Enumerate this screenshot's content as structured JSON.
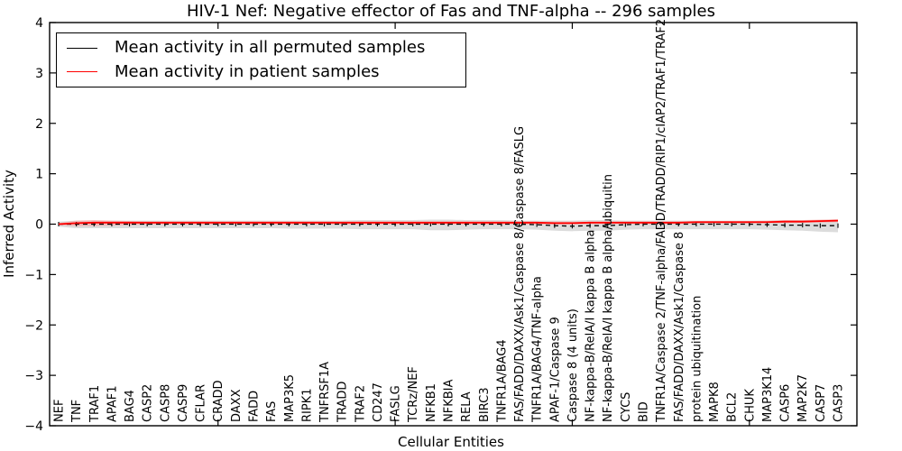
{
  "title": "HIV-1 Nef: Negative effector of Fas and TNF-alpha -- 296 samples",
  "colors": {
    "permuted_line": "#000000",
    "patient_line": "#ff0000",
    "permuted_band": "#d6d6d6",
    "patient_band": "#f6a8a8",
    "axis": "#000000"
  },
  "chart_data": {
    "type": "line",
    "title": "HIV-1 Nef: Negative effector of Fas and TNF-alpha -- 296 samples",
    "xlabel": "Cellular Entities",
    "ylabel": "Inferred Activity",
    "ylim": [
      -4,
      4
    ],
    "yticks": [
      -4,
      -3,
      -2,
      -1,
      0,
      1,
      2,
      3,
      4
    ],
    "grid": false,
    "legend_position": "upper left",
    "x_major_tick_indices": [
      9,
      19,
      29,
      39
    ],
    "categories": [
      "NEF",
      "TNF",
      "TRAF1",
      "APAF1",
      "BAG4",
      "CASP2",
      "CASP8",
      "CASP9",
      "CFLAR",
      "CRADD",
      "DAXX",
      "FADD",
      "FAS",
      "MAP3K5",
      "RIPK1",
      "TNFRSF1A",
      "TRADD",
      "TRAF2",
      "CD247",
      "FASLG",
      "TCRz/NEF",
      "NFKB1",
      "NFKBIA",
      "RELA",
      "BIRC3",
      "TNFR1A/BAG4",
      "FAS/FADD/DAXX/Ask1/Caspase 8/Caspase 8/FASLG",
      "TNFR1A/BAG4/TNF-alpha",
      "APAF-1/Caspase 9",
      "Caspase 8 (4 units)",
      "NF-kappa-B/RelA/I kappa B alpha",
      "NF-kappa-B/RelA/I kappa B alpha/ubiquitin",
      "CYCS",
      "BID",
      "TNFR1A/Caspase 2/TNF-alpha/FADD/TRADD/RIP1/cIAP2/TRAF1/TRAF2",
      "FAS/FADD/DAXX/Ask1/Caspase 8",
      "protein ubiquitination",
      "MAPK8",
      "BCL2",
      "CHUK",
      "MAP3K14",
      "CASP6",
      "MAP2K7",
      "CASP7",
      "CASP3"
    ],
    "series": [
      {
        "name": "Mean activity in all permuted samples",
        "color": "#000000",
        "style": "dashed-with-tick-markers",
        "values": [
          0,
          0,
          0,
          0,
          0,
          0,
          0,
          0,
          0,
          0,
          0,
          0,
          0,
          0,
          0,
          0,
          0,
          0,
          0,
          0,
          0,
          0,
          0,
          0,
          0,
          0,
          0,
          -0.01,
          -0.03,
          -0.04,
          -0.03,
          -0.03,
          -0.01,
          0,
          0,
          0,
          0,
          0,
          0,
          0,
          -0.01,
          -0.02,
          -0.02,
          -0.03,
          -0.03
        ]
      },
      {
        "name": "Mean activity in patient samples",
        "color": "#ff0000",
        "style": "solid",
        "values": [
          0,
          0.02,
          0.03,
          0.03,
          0.03,
          0.03,
          0.03,
          0.03,
          0.03,
          0.03,
          0.03,
          0.03,
          0.03,
          0.03,
          0.03,
          0.03,
          0.03,
          0.03,
          0.03,
          0.03,
          0.03,
          0.03,
          0.03,
          0.03,
          0.03,
          0.03,
          0.03,
          0.03,
          0.02,
          0.02,
          0.03,
          0.03,
          0.03,
          0.03,
          0.03,
          0.03,
          0.04,
          0.04,
          0.04,
          0.04,
          0.04,
          0.05,
          0.05,
          0.06,
          0.07
        ]
      }
    ],
    "bands": [
      {
        "name": "permuted-samples-range",
        "color": "#d6d6d6",
        "opacity": 0.85,
        "upper": [
          0.05,
          0.07,
          0.07,
          0.07,
          0.07,
          0.07,
          0.07,
          0.07,
          0.07,
          0.07,
          0.07,
          0.07,
          0.07,
          0.07,
          0.07,
          0.07,
          0.07,
          0.08,
          0.08,
          0.08,
          0.08,
          0.09,
          0.09,
          0.08,
          0.08,
          0.08,
          0.07,
          0.07,
          0.07,
          0.07,
          0.08,
          0.08,
          0.07,
          0.07,
          0.07,
          0.07,
          0.07,
          0.07,
          0.07,
          0.07,
          0.07,
          0.08,
          0.08,
          0.08,
          0.08
        ],
        "lower": [
          -0.05,
          -0.08,
          -0.08,
          -0.08,
          -0.08,
          -0.08,
          -0.08,
          -0.08,
          -0.08,
          -0.08,
          -0.08,
          -0.08,
          -0.08,
          -0.09,
          -0.09,
          -0.09,
          -0.09,
          -0.1,
          -0.1,
          -0.1,
          -0.1,
          -0.12,
          -0.12,
          -0.11,
          -0.1,
          -0.1,
          -0.1,
          -0.11,
          -0.13,
          -0.14,
          -0.13,
          -0.13,
          -0.11,
          -0.1,
          -0.1,
          -0.1,
          -0.1,
          -0.1,
          -0.1,
          -0.1,
          -0.11,
          -0.12,
          -0.13,
          -0.15,
          -0.16
        ]
      },
      {
        "name": "patient-samples-range",
        "color": "#f6a8a8",
        "opacity": 0.65,
        "upper": [
          0.02,
          0.07,
          0.08,
          0.07,
          0.06,
          0.05,
          0.05,
          0.05,
          0.05,
          0.05,
          0.05,
          0.05,
          0.05,
          0.05,
          0.05,
          0.05,
          0.05,
          0.05,
          0.05,
          0.05,
          0.05,
          0.05,
          0.05,
          0.05,
          0.05,
          0.05,
          0.05,
          0.05,
          0.05,
          0.05,
          0.05,
          0.05,
          0.05,
          0.05,
          0.05,
          0.05,
          0.06,
          0.06,
          0.06,
          0.06,
          0.07,
          0.08,
          0.08,
          0.09,
          0.1
        ],
        "lower": [
          -0.02,
          -0.04,
          -0.04,
          -0.03,
          -0.02,
          -0.01,
          -0.01,
          -0.01,
          -0.01,
          -0.01,
          -0.01,
          -0.01,
          -0.01,
          -0.01,
          -0.01,
          -0.01,
          -0.01,
          -0.01,
          -0.01,
          -0.01,
          -0.01,
          -0.01,
          -0.01,
          -0.01,
          -0.01,
          -0.01,
          -0.01,
          -0.01,
          -0.01,
          -0.01,
          0,
          0,
          0,
          0,
          0,
          0,
          0.01,
          0.01,
          0.01,
          0.01,
          0.02,
          0.02,
          0.03,
          0.03,
          0.04
        ]
      }
    ]
  }
}
